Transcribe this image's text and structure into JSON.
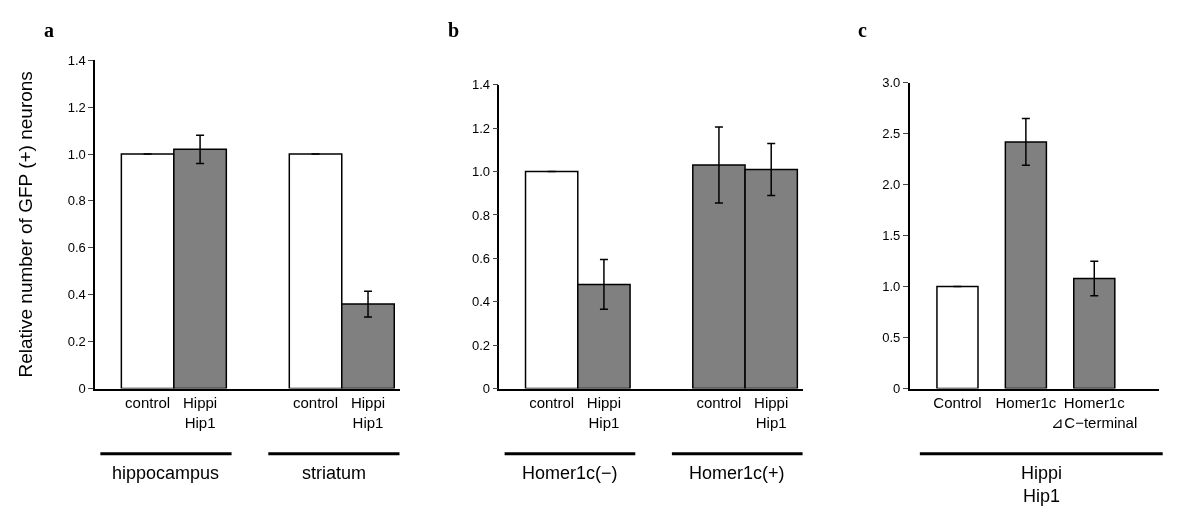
{
  "chart_data": [
    {
      "type": "bar",
      "title": "a",
      "ylabel": "Relative number of GFP (+) neurons",
      "categories": [
        "control",
        "Hippi\nHip1",
        "control",
        "Hippi\nHip1"
      ],
      "values": [
        1.0,
        1.02,
        1.0,
        0.36
      ],
      "errors": [
        null,
        0.06,
        null,
        0.055
      ],
      "colors": [
        "#ffffff",
        "#808080",
        "#ffffff",
        "#808080"
      ],
      "ylim": [
        0,
        1.4
      ],
      "yticks": [
        0,
        0.2,
        0.4,
        0.6,
        0.8,
        {
          "value": 1.0,
          "label": "1.0"
        },
        1.2,
        1.4
      ],
      "annotations": [
        "hippocampus",
        "striatum"
      ]
    },
    {
      "type": "bar",
      "title": "b",
      "categories": [
        "control",
        "Hippi\nHip1",
        "control",
        "Hippi\nHip1"
      ],
      "values": [
        1.0,
        0.48,
        1.03,
        1.01
      ],
      "errors": [
        0,
        0.115,
        0.175,
        0.12
      ],
      "colors": [
        "#ffffff",
        "#808080",
        "#808080",
        "#808080"
      ],
      "ylim": [
        0,
        1.4
      ],
      "yticks": [
        0,
        0.2,
        0.4,
        0.6,
        0.8,
        {
          "value": 1.0,
          "label": "1.0"
        },
        1.2,
        1.4
      ],
      "annotations": [
        "Homer1c(−)",
        "Homer1c(+)"
      ]
    },
    {
      "type": "bar",
      "title": "c",
      "categories": [
        "Control",
        "Homer1c",
        "Homer1c\n⊿C−terminal"
      ],
      "values": [
        1.0,
        2.42,
        1.08
      ],
      "errors": [
        null,
        0.23,
        0.17
      ],
      "colors": [
        "#ffffff",
        "#808080",
        "#808080"
      ],
      "ylim": [
        0,
        3.0
      ],
      "yticks": [
        0,
        0.5,
        {
          "value": 1.0,
          "label": "1.0"
        },
        1.5,
        {
          "value": 2.0,
          "label": "2.0"
        },
        2.5,
        {
          "value": 3.0,
          "label": "3.0"
        }
      ],
      "annotations": [
        "Hippi\nHip1"
      ]
    }
  ]
}
